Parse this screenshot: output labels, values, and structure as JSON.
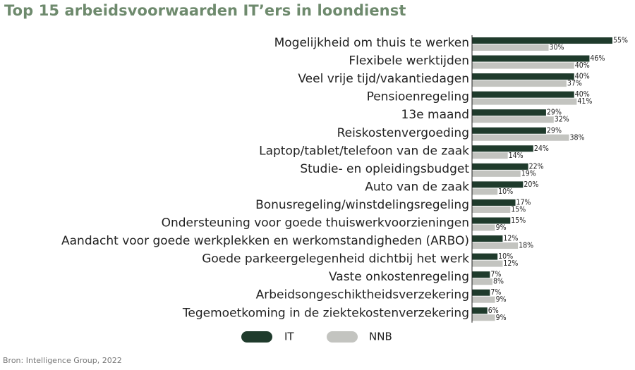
{
  "title": "Top 15 arbeidsvoorwaarden IT’ers in loondienst",
  "source": "Bron: Intelligence Group, 2022",
  "colors": {
    "title": "#6e8a6d",
    "IT": "#1f3b2c",
    "NNB": "#c3c4c0",
    "axis": "#222222"
  },
  "chart_data": {
    "type": "bar",
    "orientation": "horizontal",
    "categories": [
      "Mogelijkheid om thuis te werken",
      "Flexibele werktijden",
      "Veel vrije tijd/vakantiedagen",
      "Pensioenregeling",
      "13e maand",
      "Reiskostenvergoeding",
      "Laptop/tablet/telefoon van de zaak",
      "Studie- en opleidingsbudget",
      "Auto van de zaak",
      "Bonusregeling/winstdelingsregeling",
      "Ondersteuning voor goede thuiswerkvoorzieningen",
      "Aandacht voor goede werkplekken en werkomstandigheden (ARBO)",
      "Goede parkeergelegenheid dichtbij het werk",
      "Vaste onkostenregeling",
      "Arbeidsongeschiktheidsverzekering",
      "Tegemoetkoming in de ziektekostenverzekering"
    ],
    "series": [
      {
        "name": "IT",
        "color": "#1f3b2c",
        "values": [
          55,
          46,
          40,
          40,
          29,
          29,
          24,
          22,
          20,
          17,
          15,
          12,
          10,
          7,
          7,
          6
        ],
        "labels": [
          "55%",
          "46%",
          "40%",
          "40%",
          "29%",
          "29%",
          "24%",
          "22%",
          "20%",
          "17%",
          "15%",
          "12%",
          "10%",
          "7%",
          "7%",
          "6%"
        ]
      },
      {
        "name": "NNB",
        "color": "#c3c4c0",
        "values": [
          30,
          40,
          37,
          41,
          32,
          38,
          14,
          19,
          10,
          15,
          9,
          18,
          12,
          8,
          9,
          9
        ],
        "labels": [
          "30%",
          "40%",
          "37%",
          "41%",
          "32%",
          "38%",
          "14%",
          "19%",
          "10%",
          "15%",
          "9%",
          "18%",
          "12%",
          "8%",
          "9%",
          "9%"
        ]
      }
    ],
    "xlim": [
      0,
      55
    ],
    "legend": "bottom",
    "grid": false
  }
}
